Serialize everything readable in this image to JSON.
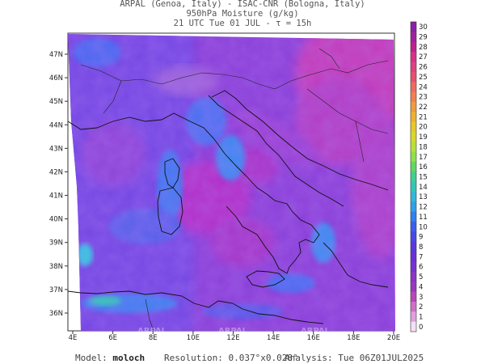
{
  "header": {
    "line1": "ARPAL (Genoa, Italy)  -  ISAC-CNR (Bologna, Italy)",
    "line2": "950hPa Moisture (g/kg)",
    "line3": "21 UTC Tue 01 JUL  -  τ = 15h"
  },
  "map": {
    "lon_labels": [
      "4E",
      "6E",
      "8E",
      "10E",
      "12E",
      "14E",
      "16E",
      "18E",
      "20E"
    ],
    "lat_labels": [
      "47N",
      "46N",
      "45N",
      "44N",
      "43N",
      "42N",
      "41N",
      "40N",
      "39N",
      "38N",
      "37N",
      "36N"
    ],
    "watermark": "ARPAL"
  },
  "colorbar": {
    "labels": [
      "30",
      "29",
      "28",
      "27",
      "26",
      "25",
      "24",
      "23",
      "22",
      "21",
      "20",
      "19",
      "18",
      "17",
      "16",
      "15",
      "14",
      "13",
      "12",
      "11",
      "10",
      "9",
      "8",
      "7",
      "6",
      "5",
      "4",
      "3",
      "2",
      "1",
      "0"
    ],
    "colors": [
      "#8a1fa8",
      "#a020a0",
      "#c02090",
      "#d83088",
      "#e04080",
      "#e85070",
      "#f06a60",
      "#f08050",
      "#f09a40",
      "#f0b030",
      "#e8c828",
      "#d8d828",
      "#b8e038",
      "#90e048",
      "#60d860",
      "#40d090",
      "#30c8b8",
      "#30b8d8",
      "#30a0e8",
      "#3080f0",
      "#3860f0",
      "#4848e8",
      "#5838e0",
      "#6830d8",
      "#7a30d0",
      "#8a34c8",
      "#9a38c0",
      "#b848b8",
      "#d070c8",
      "#e0a0e0",
      "#f4e0f4"
    ]
  },
  "footer": {
    "model_label": "Model:",
    "model_value": "moloch",
    "resolution_label": "Resolution:",
    "resolution_value": "0.037°x0.028°",
    "analysis_label": "Analysis:",
    "analysis_value": "Tue 06Z01JUL2025"
  }
}
